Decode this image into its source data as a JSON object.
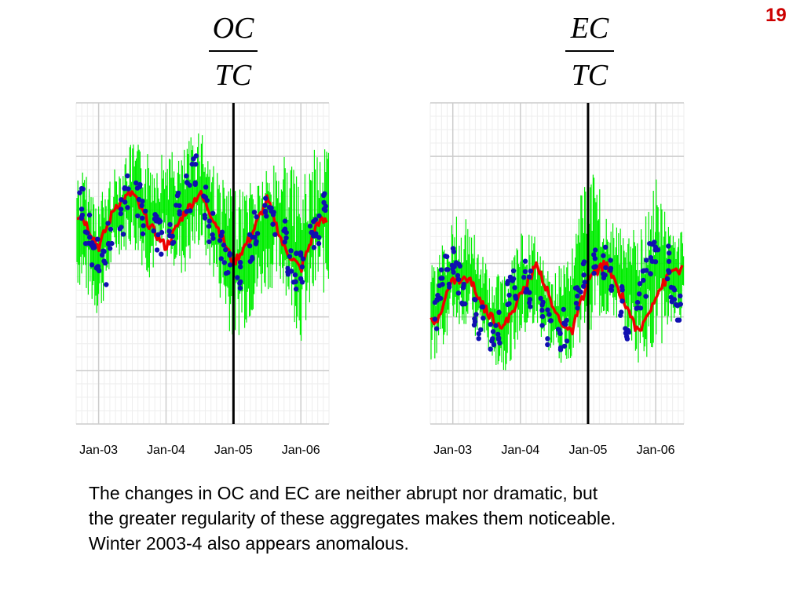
{
  "slide": {
    "number": "19"
  },
  "titles": {
    "left": {
      "numerator": "OC",
      "denominator": "TC"
    },
    "right": {
      "numerator": "EC",
      "denominator": "TC"
    }
  },
  "caption": {
    "lines": [
      "The changes in OC and EC are neither abrupt nor dramatic, but",
      "the greater regularity of these aggregates makes them noticeable.",
      "Winter 2003-4 also appears anomalous."
    ]
  },
  "colors": {
    "daily_band": "#00ee00",
    "smooth": "#ee0000",
    "points": "#1010b0",
    "marker": "#000000",
    "grid_major": "#cccccc",
    "grid_minor": "#eeeeee",
    "slide_number": "#cc0000"
  },
  "chart_data": [
    {
      "type": "line",
      "title": "OC / TC",
      "xlabel": "",
      "ylabel": "",
      "x_ticks": [
        "Jan-03",
        "Jan-04",
        "Jan-05",
        "Jan-06"
      ],
      "x_range": [
        "2002-09",
        "2006-06"
      ],
      "y_range": [
        0,
        1
      ],
      "grid": true,
      "vertical_marker": "Jan-05",
      "series": [
        {
          "style": "daily range (green band)",
          "x": [
            "Oct-02",
            "Jan-03",
            "Apr-03",
            "Jul-03",
            "Oct-03",
            "Jan-04",
            "Apr-04",
            "Jul-04",
            "Oct-04",
            "Jan-05",
            "Apr-05",
            "Jul-05",
            "Oct-05",
            "Jan-06",
            "Apr-06"
          ],
          "low": [
            0.42,
            0.32,
            0.52,
            0.55,
            0.45,
            0.52,
            0.45,
            0.55,
            0.42,
            0.25,
            0.32,
            0.42,
            0.42,
            0.25,
            0.4
          ],
          "high": [
            0.8,
            0.72,
            0.8,
            0.88,
            0.85,
            0.85,
            0.85,
            0.95,
            0.8,
            0.72,
            0.78,
            0.8,
            0.85,
            0.75,
            0.88
          ]
        },
        {
          "style": "smoothed (red line)",
          "x": [
            "Oct-02",
            "Jan-03",
            "Apr-03",
            "Jul-03",
            "Oct-03",
            "Jan-04",
            "Apr-04",
            "Jul-04",
            "Oct-04",
            "Jan-05",
            "Apr-05",
            "Jul-05",
            "Oct-05",
            "Jan-06",
            "Apr-06"
          ],
          "y": [
            0.65,
            0.55,
            0.68,
            0.72,
            0.62,
            0.55,
            0.65,
            0.72,
            0.62,
            0.5,
            0.58,
            0.7,
            0.55,
            0.48,
            0.63
          ]
        },
        {
          "style": "observations (blue points)",
          "x": [
            "Oct-02",
            "Nov-02",
            "Dec-02",
            "Jan-03",
            "Feb-03",
            "Mar-03",
            "May-03",
            "Jun-03",
            "Aug-03",
            "Sep-03",
            "Nov-03",
            "Dec-03",
            "Feb-04",
            "Mar-04",
            "May-04",
            "Jun-04",
            "Aug-04",
            "Sep-04",
            "Nov-04",
            "Dec-04",
            "Feb-05",
            "Apr-05",
            "May-05",
            "Jul-05",
            "Aug-05",
            "Oct-05",
            "Nov-05",
            "Dec-05",
            "Jan-06",
            "Mar-06",
            "Apr-06",
            "May-06"
          ],
          "y": [
            0.68,
            0.62,
            0.55,
            0.52,
            0.48,
            0.58,
            0.65,
            0.72,
            0.7,
            0.65,
            0.6,
            0.58,
            0.62,
            0.67,
            0.72,
            0.78,
            0.7,
            0.62,
            0.55,
            0.5,
            0.47,
            0.55,
            0.62,
            0.7,
            0.62,
            0.6,
            0.52,
            0.48,
            0.5,
            0.58,
            0.62,
            0.66
          ]
        }
      ]
    },
    {
      "type": "line",
      "title": "EC / TC",
      "xlabel": "",
      "ylabel": "",
      "x_ticks": [
        "Jan-03",
        "Jan-04",
        "Jan-05",
        "Jan-06"
      ],
      "x_range": [
        "2002-09",
        "2006-06"
      ],
      "y_range": [
        0,
        1
      ],
      "grid": true,
      "vertical_marker": "Jan-05",
      "series": [
        {
          "style": "daily range (green band)",
          "x": [
            "Oct-02",
            "Jan-03",
            "Apr-03",
            "Jul-03",
            "Oct-03",
            "Jan-04",
            "Apr-04",
            "Jul-04",
            "Oct-04",
            "Jan-05",
            "Apr-05",
            "Jul-05",
            "Oct-05",
            "Jan-06",
            "Apr-06"
          ],
          "low": [
            0.2,
            0.3,
            0.3,
            0.22,
            0.15,
            0.25,
            0.28,
            0.18,
            0.2,
            0.28,
            0.32,
            0.3,
            0.18,
            0.22,
            0.3
          ],
          "high": [
            0.5,
            0.65,
            0.65,
            0.5,
            0.45,
            0.6,
            0.58,
            0.48,
            0.55,
            0.85,
            0.68,
            0.62,
            0.6,
            0.78,
            0.6
          ]
        },
        {
          "style": "smoothed (red line)",
          "x": [
            "Oct-02",
            "Jan-03",
            "Apr-03",
            "Jul-03",
            "Oct-03",
            "Jan-04",
            "Apr-04",
            "Jul-04",
            "Oct-04",
            "Jan-05",
            "Apr-05",
            "Jul-05",
            "Oct-05",
            "Jan-06",
            "Apr-06"
          ],
          "y": [
            0.32,
            0.45,
            0.45,
            0.35,
            0.3,
            0.4,
            0.5,
            0.35,
            0.28,
            0.45,
            0.5,
            0.4,
            0.28,
            0.4,
            0.48
          ]
        },
        {
          "style": "observations (blue points)",
          "x": [
            "Oct-02",
            "Nov-02",
            "Dec-02",
            "Jan-03",
            "Feb-03",
            "Mar-03",
            "May-03",
            "Jun-03",
            "Aug-03",
            "Sep-03",
            "Nov-03",
            "Dec-03",
            "Feb-04",
            "Mar-04",
            "May-04",
            "Jun-04",
            "Aug-04",
            "Sep-04",
            "Nov-04",
            "Dec-04",
            "Feb-05",
            "Apr-05",
            "May-05",
            "Jul-05",
            "Aug-05",
            "Oct-05",
            "Nov-05",
            "Dec-05",
            "Jan-06",
            "Mar-06",
            "Apr-06",
            "May-06"
          ],
          "y": [
            0.35,
            0.42,
            0.48,
            0.52,
            0.45,
            0.4,
            0.35,
            0.32,
            0.28,
            0.3,
            0.4,
            0.44,
            0.45,
            0.42,
            0.36,
            0.3,
            0.26,
            0.3,
            0.38,
            0.45,
            0.52,
            0.5,
            0.45,
            0.38,
            0.32,
            0.38,
            0.45,
            0.52,
            0.56,
            0.5,
            0.42,
            0.38
          ]
        }
      ]
    }
  ]
}
